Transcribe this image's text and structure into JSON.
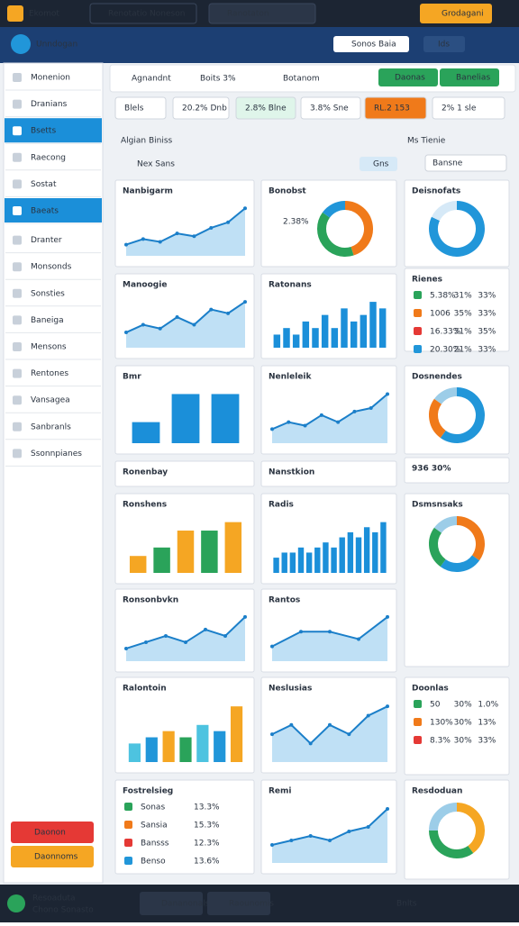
{
  "topbar": {
    "app": "Ekomot",
    "tabs": [
      "Renotatio Noneson",
      "Ranotaton"
    ],
    "button": "Grodagani"
  },
  "header": {
    "title": "Unndogan",
    "search": "Sonos Baia",
    "button": "Ids"
  },
  "sidebar": {
    "items": [
      "Monenion",
      "Dranians",
      "Bsetts",
      "Raecong",
      "Sostat",
      "Baeats",
      "Dranter",
      "Monsonds",
      "Sonsties",
      "Baneiga",
      "Mensons",
      "Rentones",
      "Vansagea",
      "Sanbranls",
      "Ssonnpianes"
    ],
    "active": [
      2,
      5
    ],
    "buttons": [
      "Daonon",
      "Daonnoms"
    ]
  },
  "toolbar": {
    "items": [
      "Agnandnt",
      "Boits 3%",
      "Botanom"
    ],
    "buttons": [
      "Daonas",
      "Banelias"
    ]
  },
  "chips": [
    "Blels",
    "20.2% Dnb",
    "2.8% Blne",
    "3.8% Sne",
    "RL.2 153",
    "2% 1 sle"
  ],
  "section": {
    "title": "Algian Biniss",
    "side": "Ms Tienie",
    "filter": "Nex Sans",
    "button": "Gns",
    "dropdown": "Bansne"
  },
  "panels": [
    {
      "title": "Nanbigarm",
      "kind": "area",
      "values": [
        2,
        3,
        2.5,
        4,
        3.5,
        5,
        6,
        8.5
      ]
    },
    {
      "title": "Bonobst",
      "kind": "donut",
      "values": [
        45,
        40,
        15
      ],
      "colors": [
        "#f07a1a",
        "#2aa35a",
        "#2196d9"
      ],
      "note": "2.38%"
    },
    {
      "title": "Deisnofats",
      "kind": "donut",
      "values": [
        82,
        18
      ],
      "colors": [
        "#2196d9",
        "#d6e9f7"
      ]
    },
    {
      "title": "Manoogie",
      "kind": "area",
      "values": [
        2,
        3,
        2.5,
        4,
        3,
        5,
        4.5,
        6
      ]
    },
    {
      "title": "Ratonans",
      "kind": "bars",
      "values": [
        2,
        3,
        2,
        4,
        3,
        5,
        3,
        6,
        4,
        5,
        7,
        6
      ]
    },
    {
      "title": "Rienes",
      "kind": "list",
      "rows": [
        [
          "5.38%",
          "31%",
          "33%"
        ],
        [
          "1006",
          "35%",
          "33%"
        ],
        [
          "16.33%",
          "31%",
          "35%"
        ],
        [
          "20.30%",
          "21%",
          "33%"
        ]
      ]
    },
    {
      "title": "Bmr",
      "kind": "bars",
      "values": [
        3,
        7,
        7
      ]
    },
    {
      "title": "Nenleleik",
      "kind": "area",
      "values": [
        2,
        3,
        2.5,
        4,
        3,
        4.5,
        5,
        7
      ]
    },
    {
      "title": "Dosnendes",
      "kind": "donut",
      "values": [
        60,
        25,
        15
      ],
      "colors": [
        "#2196d9",
        "#f07a1a",
        "#9ccde8"
      ]
    },
    {
      "title": "Ronenbay",
      "kind": "header"
    },
    {
      "title": "Nanstkion",
      "kind": "header"
    },
    {
      "title": "936 30%",
      "kind": "header"
    },
    {
      "title": "Ronshens",
      "kind": "bars",
      "values": [
        2,
        3,
        5,
        5,
        6
      ],
      "colors": [
        "#f5a623",
        "#2aa35a"
      ]
    },
    {
      "title": "Radis",
      "kind": "bars",
      "values": [
        3,
        4,
        4,
        5,
        4,
        5,
        6,
        5,
        7,
        8,
        7,
        9,
        8,
        10
      ]
    },
    {
      "title": "Dsmsnsaks",
      "kind": "donut",
      "values": [
        35,
        25,
        25,
        15
      ],
      "colors": [
        "#f07a1a",
        "#2196d9",
        "#2aa35a",
        "#9ccde8"
      ]
    },
    {
      "title": "Ronsonbvkn",
      "kind": "area",
      "values": [
        2,
        3,
        4,
        3,
        5,
        4,
        7
      ]
    },
    {
      "title": "Rantos",
      "kind": "area",
      "values": [
        2,
        4,
        4,
        3,
        6
      ]
    },
    {
      "title": "Ralontoin",
      "kind": "bars",
      "values": [
        3,
        4,
        5,
        4,
        6,
        5,
        9
      ],
      "colors": [
        "#4dc3e0",
        "#2196d9",
        "#f5a623",
        "#2aa35a"
      ]
    },
    {
      "title": "Neslusias",
      "kind": "area",
      "values": [
        3,
        4,
        2,
        4,
        3,
        5,
        6
      ]
    },
    {
      "title": "Doonlas",
      "kind": "list",
      "rows": [
        [
          "50",
          "30%",
          "1.0%"
        ],
        [
          "130%",
          "30%",
          "13%"
        ],
        [
          "8.3%",
          "30%",
          "33%"
        ]
      ]
    },
    {
      "title": "Fostrelsieg",
      "kind": "list",
      "rows": [
        [
          "Sonas",
          "13.3%"
        ],
        [
          "Sansia",
          "15.3%"
        ],
        [
          "Bansss",
          "12.3%"
        ],
        [
          "Benso",
          "13.6%"
        ]
      ]
    },
    {
      "title": "Remi",
      "kind": "area",
      "values": [
        2,
        2.5,
        3,
        2.5,
        3.5,
        4,
        6
      ]
    },
    {
      "title": "Resdoduan",
      "kind": "donut",
      "values": [
        40,
        35,
        25
      ],
      "colors": [
        "#f5a623",
        "#2aa35a",
        "#9ccde8"
      ]
    }
  ],
  "footer": {
    "title": "Resoaduta",
    "subtitle": "Chono Sonasto",
    "tabs": [
      "Dananonals",
      "Raounomis"
    ],
    "button": "Bnlts"
  }
}
